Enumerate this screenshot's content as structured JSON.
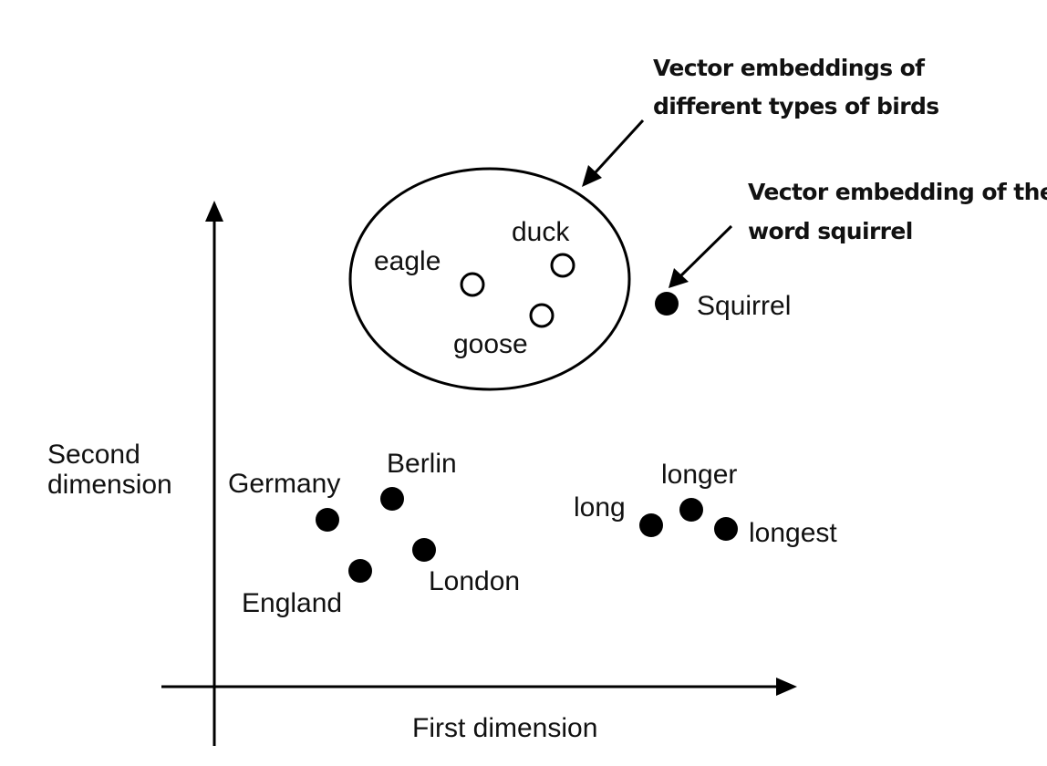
{
  "axes": {
    "x_label": "First dimension",
    "y_label_line1": "Second",
    "y_label_line2": "dimension"
  },
  "points": {
    "eagle": {
      "label": "eagle",
      "style": "hollow"
    },
    "duck": {
      "label": "duck",
      "style": "hollow"
    },
    "goose": {
      "label": "goose",
      "style": "hollow"
    },
    "squirrel": {
      "label": "Squirrel",
      "style": "filled"
    },
    "germany": {
      "label": "Germany",
      "style": "filled"
    },
    "berlin": {
      "label": "Berlin",
      "style": "filled"
    },
    "england": {
      "label": "England",
      "style": "filled"
    },
    "london": {
      "label": "London",
      "style": "filled"
    },
    "long": {
      "label": "long",
      "style": "filled"
    },
    "longer": {
      "label": "longer",
      "style": "filled"
    },
    "longest": {
      "label": "longest",
      "style": "filled"
    }
  },
  "annotations": {
    "birds_line1": "Vector embeddings of",
    "birds_line2": "different types of birds",
    "squirrel_line1": "Vector embedding of the",
    "squirrel_line2": "word squirrel"
  },
  "colors": {
    "ink": "#000000",
    "background": "#ffffff"
  }
}
